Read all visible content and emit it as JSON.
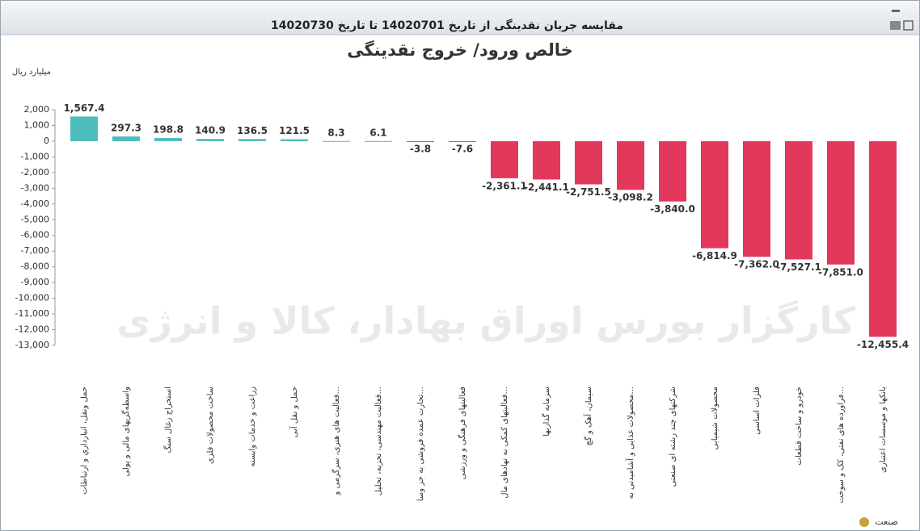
{
  "window_title": "مقایسه جریان نقدینگی از تاریخ 14020701 تا تاریخ 14020730",
  "watermark": "کارگزار بورس اوراق بهادار، کالا و انرژی",
  "chart_data": {
    "type": "bar",
    "title": "خالص ورود/ خروج نقدینگی",
    "y_label": "میلیارد ریال",
    "x_label": "صنعت",
    "categories": [
      "حمل ونقل، انبارداري و ارتباطات",
      "واسطه‌گریهای مالی و پولی",
      "استخراج زغال سنگ",
      "ساخت محصولات فلزی",
      "زراعت و خدمات وابسته",
      "حمل و نقل آبی",
      "فعالیت های هنری، سرگرمی و...",
      "فعالیت مهندسی، تجزیه، تحلیل...",
      "تجارت عمده فروشی به جز وسا...",
      "فعالیتهای فرهنگی و ورزشی",
      "فعالیتهای کمکی به نهادهای مال...",
      "سرمایه گذاریها",
      "سیمان، آهک و گچ",
      "محصولات غذایی و آشامیدنی به...",
      "شرکتهای چند رشته ای صنعتی",
      "محصولات شیمیایی",
      "فلزات اساسی",
      "خودرو و ساخت قطعات",
      "فراورده های نفتی، کک و سوخت...",
      "بانکها و موسسات اعتباری"
    ],
    "values": [
      1567.4,
      297.3,
      198.8,
      140.9,
      136.5,
      121.5,
      8.3,
      6.1,
      -3.8,
      -7.6,
      -2361.1,
      -2441.1,
      -2751.5,
      -3098.2,
      -3840.0,
      -6814.9,
      -7362.0,
      -7527.1,
      -7851.0,
      -12455.4
    ],
    "value_labels": [
      "1,567.4",
      "297.3",
      "198.8",
      "140.9",
      "136.5",
      "121.5",
      "8.3",
      "6.1",
      "-3.8",
      "-7.6",
      "-2,361.1",
      "-2,441.1",
      "-2,751.5",
      "-3,098.2",
      "-3,840.0",
      "-6,814.9",
      "-7,362.0",
      "-7,527.1",
      "-7,851.0",
      "-12,455.4"
    ],
    "positive_color": "#4cbcbc",
    "negative_color": "#e2385c",
    "ylim": [
      -13000,
      2000
    ],
    "yticks": [
      {
        "value": 2000,
        "label": "2,000"
      },
      {
        "value": 1000,
        "label": "1,000"
      },
      0,
      {
        "value": -1000,
        "label": "-1,000"
      },
      {
        "value": -2000,
        "label": "-2,000"
      },
      {
        "value": -3000,
        "label": "-3,000"
      },
      {
        "value": -4000,
        "label": "-4,000"
      },
      {
        "value": -5000,
        "label": "-5,000"
      },
      {
        "value": -6000,
        "label": "-6,000"
      },
      {
        "value": -7000,
        "label": "-7,000"
      },
      {
        "value": -8000,
        "label": "-8,000"
      },
      {
        "value": -9000,
        "label": "-9,000"
      },
      {
        "value": -10000,
        "label": "-10,000"
      },
      {
        "value": -11000,
        "label": "-11,000"
      },
      {
        "value": -12000,
        "label": "-12,000"
      },
      {
        "value": -13000,
        "label": "-13,000"
      }
    ]
  }
}
